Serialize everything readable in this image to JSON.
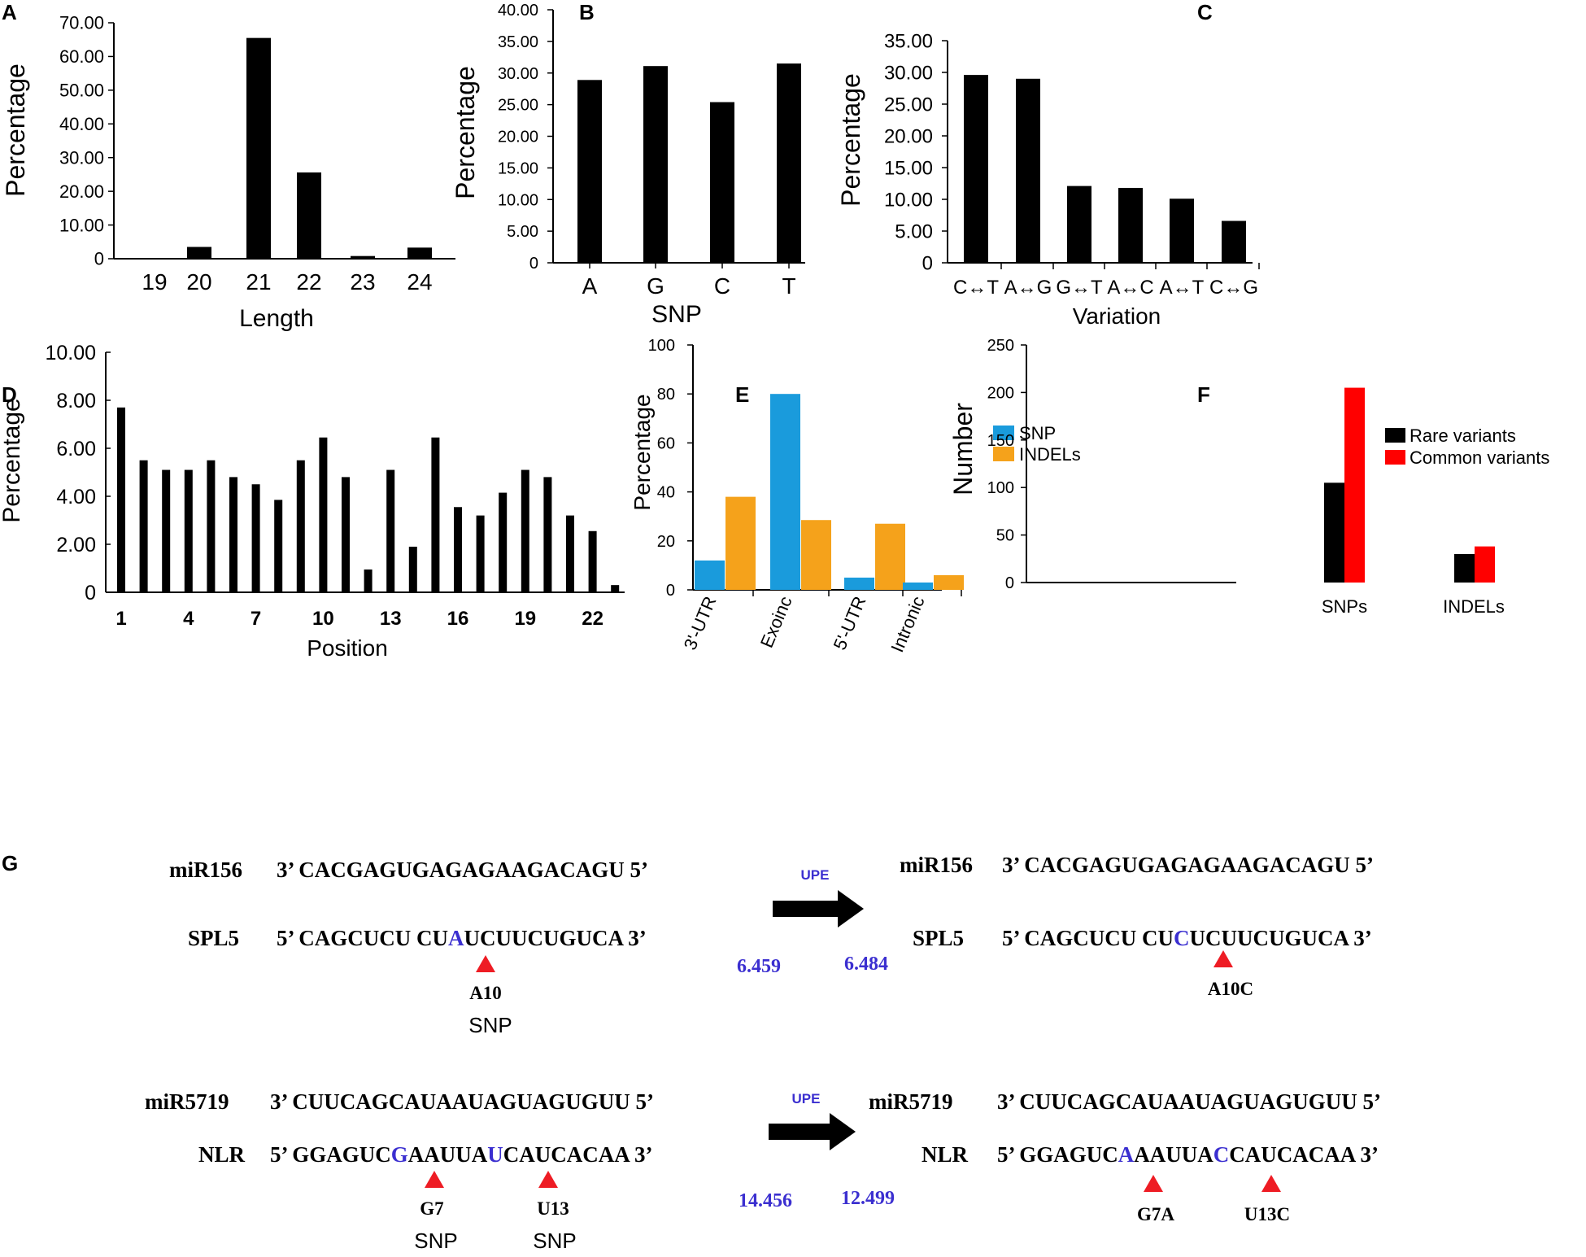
{
  "chart_data": [
    {
      "panel": "A",
      "type": "bar",
      "categories": [
        "19",
        "20",
        "21",
        "22",
        "23",
        "24"
      ],
      "values": [
        0.0,
        3.5,
        65.5,
        25.6,
        0.8,
        3.3
      ],
      "ylabel": "Percentage",
      "xlabel": "Length",
      "ylim": [
        0,
        70
      ],
      "yticks": [
        "0",
        "10.00",
        "20.00",
        "30.00",
        "40.00",
        "50.00",
        "60.00",
        "70.00"
      ]
    },
    {
      "panel": "B",
      "type": "bar",
      "categories": [
        "A",
        "G",
        "C",
        "T"
      ],
      "values": [
        28.9,
        31.1,
        25.4,
        31.5
      ],
      "ylabel": "Percentage",
      "xlabel": "SNP",
      "ylim": [
        0,
        40
      ],
      "yticks": [
        "0",
        "5.00",
        "10.00",
        "15.00",
        "20.00",
        "25.00",
        "30.00",
        "35.00",
        "40.00"
      ]
    },
    {
      "panel": "C",
      "type": "bar",
      "categories": [
        "C↔T",
        "A↔G",
        "G↔T",
        "A↔C",
        "A↔T",
        "C↔G"
      ],
      "values": [
        29.6,
        29.0,
        12.1,
        11.8,
        10.1,
        6.6
      ],
      "ylabel": "Percentage",
      "xlabel": "Variation",
      "ylim": [
        0,
        35
      ],
      "yticks": [
        "0",
        "5.00",
        "10.00",
        "15.00",
        "20.00",
        "25.00",
        "30.00",
        "35.00"
      ]
    },
    {
      "panel": "D",
      "type": "bar",
      "x": [
        1,
        2,
        3,
        4,
        5,
        6,
        7,
        8,
        9,
        10,
        11,
        12,
        13,
        14,
        15,
        16,
        17,
        18,
        19,
        20,
        21,
        22,
        23
      ],
      "values": [
        7.7,
        5.5,
        5.1,
        5.1,
        5.5,
        4.8,
        4.5,
        3.85,
        5.5,
        6.45,
        4.8,
        0.95,
        5.1,
        1.9,
        6.45,
        3.55,
        3.2,
        4.15,
        5.1,
        4.8,
        3.2,
        2.55,
        0.3
      ],
      "xticks": [
        "1",
        "4",
        "7",
        "10",
        "13",
        "16",
        "19",
        "22"
      ],
      "ylabel": "Percentage",
      "xlabel": "Position",
      "ylim": [
        0,
        10
      ],
      "yticks": [
        "0",
        "2.00",
        "4.00",
        "6.00",
        "8.00",
        "10.00"
      ]
    },
    {
      "panel": "E",
      "type": "bar",
      "categories": [
        "3'-UTR",
        "Exoinc",
        "5'-UTR",
        "Intronic"
      ],
      "series": [
        {
          "name": "SNP",
          "color": "#1a9bdc",
          "values": [
            12,
            80,
            5,
            3
          ]
        },
        {
          "name": "INDELs",
          "color": "#f5a21b",
          "values": [
            38,
            28.5,
            27,
            6
          ]
        }
      ],
      "ylabel": "Percentage",
      "xlabel": "",
      "ylim": [
        0,
        100
      ],
      "yticks": [
        "0",
        "20",
        "40",
        "60",
        "80",
        "100"
      ]
    },
    {
      "panel": "F",
      "type": "bar",
      "categories": [
        "SNPs",
        "INDELs"
      ],
      "series": [
        {
          "name": "Rare variants",
          "color": "#000000",
          "values": [
            105,
            30
          ]
        },
        {
          "name": "Common variants",
          "color": "#ff0000",
          "values": [
            205,
            38
          ]
        }
      ],
      "ylabel": "Number",
      "xlabel": "",
      "ylim": [
        0,
        250
      ],
      "yticks": [
        "0",
        "50",
        "100",
        "150",
        "200",
        "250"
      ]
    }
  ],
  "panels": {
    "a": "A",
    "b": "B",
    "c": "C",
    "d": "D",
    "e": "E",
    "f": "F",
    "g": "G"
  },
  "panel_g": {
    "upe_label": "UPE",
    "row1": {
      "mirna_name": "miR156",
      "mirna_seq": "3’ CACGAGUGAGAGAAGACAGU  5’",
      "target_name": "SPL5",
      "target_left_pre": "5’ CAGCUCU  CU",
      "target_left_mut": "A",
      "target_left_post": "UCUUCUGUCA  3’",
      "target_right_pre": "5’ CAGCUCU  CU",
      "target_right_mut": "C",
      "target_right_post": "UCUUCUGUCA  3’",
      "score_left": "6.459",
      "score_right": "6.484",
      "snp_pos": "A10",
      "snp_word": "SNP",
      "mut_label": "A10C"
    },
    "row2": {
      "mirna_name": "miR5719",
      "mirna_seq": "3’ CUUCAGCAUAAUAGUAGUGUU  5’",
      "target_name": "NLR",
      "target_left_pre": "5’ GGAGUC",
      "target_left_mut1": "G",
      "target_left_mid": "AAUUA",
      "target_left_mut2": "U",
      "target_left_post": "CAUCACAA  3’",
      "target_right_pre": "5’ GGAGUC",
      "target_right_mut1": "A",
      "target_right_mid": "AAUUA",
      "target_right_mut2": "C",
      "target_right_post": "CAUCACAA  3’",
      "score_left": "14.456",
      "score_right": "12.499",
      "snp1_pos": "G7",
      "snp2_pos": "U13",
      "snp_word": "SNP",
      "mut1_label": "G7A",
      "mut2_label": "U13C"
    }
  }
}
